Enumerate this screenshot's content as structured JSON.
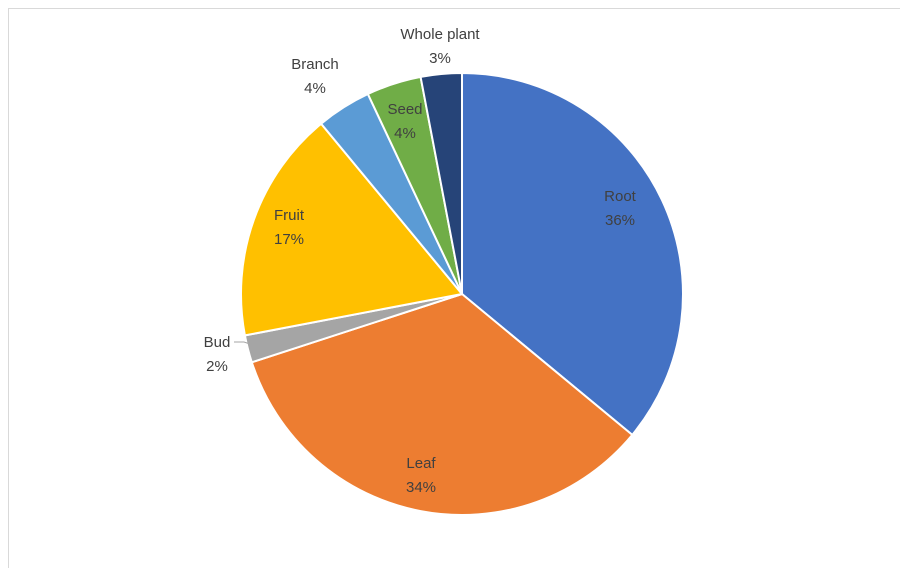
{
  "chart_data": {
    "type": "pie",
    "title": "",
    "slices": [
      {
        "label": "Root",
        "value": 36,
        "pct": "36%",
        "color": "#4472C4"
      },
      {
        "label": "Leaf",
        "value": 34,
        "pct": "34%",
        "color": "#ED7D31"
      },
      {
        "label": "Bud",
        "value": 2,
        "pct": "2%",
        "color": "#A5A5A5"
      },
      {
        "label": "Fruit",
        "value": 17,
        "pct": "17%",
        "color": "#FFC000"
      },
      {
        "label": "Branch",
        "value": 4,
        "pct": "4%",
        "color": "#5B9BD5"
      },
      {
        "label": "Seed",
        "value": 4,
        "pct": "4%",
        "color": "#70AD47"
      },
      {
        "label": "Whole plant",
        "value": 3,
        "pct": "3%",
        "color": "#264478"
      }
    ]
  }
}
